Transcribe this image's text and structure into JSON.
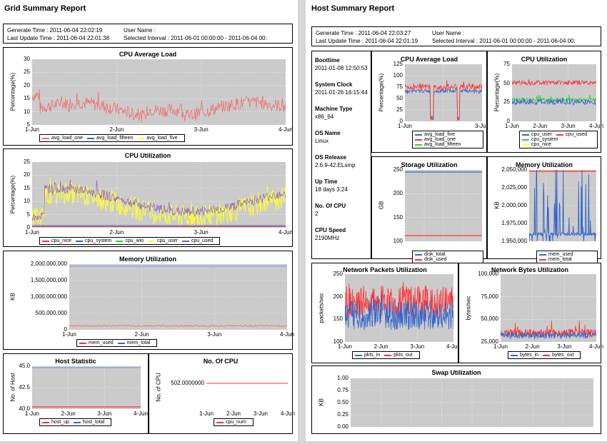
{
  "colors": {
    "red": "#ff3333",
    "pink": "#f07070",
    "blue": "#3366cc",
    "yellow": "#ffff33",
    "green": "#33cc33",
    "purple": "#8855bb",
    "lightblue": "#8899ee",
    "plotbg": "#cbcbcb"
  },
  "grid": {
    "title": "Grid Summary Report",
    "generate_time": "Generate Time : 2011-06-04 22:02:19",
    "last_update": "Last Update Time : 2011-06-04 22:01:38",
    "user_name": "User Name :",
    "interval": "Selected Interval : 2011-06-01 00:00:00 - 2011-06-04 00:"
  },
  "host": {
    "title": "Host Summary Report",
    "generate_time": "Generate Time : 2011-06-04 22:03:27",
    "last_update": "Last Update Time : 2011-06-04 22:01:19",
    "user_name": "User Name :",
    "interval": "Selected Interval : 2011-06-01 00:00:00 - 2011-06-04 00:",
    "props": [
      {
        "label": "Boottime",
        "value": "2011-01-08 12:50:53"
      },
      {
        "label": "System Clock",
        "value": "2011-01-26 16:15:44"
      },
      {
        "label": "Machine Type",
        "value": "x86_64"
      },
      {
        "label": "OS Name",
        "value": "Linux"
      },
      {
        "label": "OS Release",
        "value": "2.6.9-42.ELsmp"
      },
      {
        "label": "Up Time",
        "value": "18 days 3:24"
      },
      {
        "label": "No. Of CPU",
        "value": "2"
      },
      {
        "label": "CPU Speed",
        "value": "2190MHz"
      }
    ]
  },
  "charts": {
    "g_load": {
      "title": "CPU Average Load",
      "ylabel": "Percentage(%)",
      "yticks": [
        "30",
        "25",
        "20",
        "15",
        "10",
        "5"
      ],
      "xticks": [
        "1-Jun",
        "2-Jun",
        "3-Jun",
        "4-Jun"
      ],
      "legend": [
        {
          "name": "avg_load_one",
          "color": "#f07070"
        },
        {
          "name": "avg_load_fifteen",
          "color": "#3366cc"
        },
        {
          "name": "avg_load_five",
          "color": "#ffff33"
        }
      ]
    },
    "g_cpu": {
      "title": "CPU Utilization",
      "ylabel": "Percentage(%)",
      "yticks": [
        "25",
        "20",
        "15",
        "10",
        "5",
        "0"
      ],
      "xticks": [
        "1-Jun",
        "2-Jun",
        "3-Jun",
        "4-Jun"
      ],
      "legend": [
        {
          "name": "cpu_nice",
          "color": "#ff3333"
        },
        {
          "name": "cpu_system",
          "color": "#3366cc"
        },
        {
          "name": "cpu_wio",
          "color": "#33cc33"
        },
        {
          "name": "cpu_user",
          "color": "#ffff33"
        },
        {
          "name": "cpu_used",
          "color": "#8855bb"
        }
      ]
    },
    "g_mem": {
      "title": "Memory Utilization",
      "ylabel": "KB",
      "yticks": [
        "2,000,000,000",
        "1,500,000,000",
        "1,000,000,000",
        "500,000,000",
        "0"
      ],
      "xticks": [
        "1-Jun",
        "2-Jun",
        "3-Jun",
        "4-Jun"
      ],
      "legend": [
        {
          "name": "mem_used",
          "color": "#ff3333"
        },
        {
          "name": "mem_total",
          "color": "#3366cc"
        }
      ]
    },
    "g_host": {
      "title": "Host Statistic",
      "ylabel": "No. of Host",
      "yticks": [
        "45.0",
        "42.5",
        "40.0"
      ],
      "xticks": [
        "1-Jun",
        "2-Jun",
        "3-Jun",
        "4-Jun"
      ],
      "legend": [
        {
          "name": "host_up",
          "color": "#ff3333"
        },
        {
          "name": "host_total",
          "color": "#3366cc"
        }
      ]
    },
    "g_ncpu": {
      "title": "No. Of CPU",
      "ylabel": "No. of CPU",
      "yticks": [
        "502.0000000"
      ],
      "xticks": [
        "1-Jun",
        "2-Jun",
        "3-Jun",
        "4-Jun"
      ],
      "legend": [
        {
          "name": "cpu_num",
          "color": "#ff3333"
        }
      ]
    },
    "h_load": {
      "title": "CPU Average Load",
      "ylabel": "Percentage(%)",
      "yticks": [
        "125",
        "100",
        "75",
        "50",
        "25",
        "0"
      ],
      "xticks": [
        "1-Jun",
        "3-Jun"
      ],
      "legend": [
        {
          "name": "avg_load_five",
          "color": "#3366cc"
        },
        {
          "name": "avg_load_one",
          "color": "#ff3333"
        },
        {
          "name": "avg_load_fifteen",
          "color": "#33cc33"
        }
      ]
    },
    "h_cpu": {
      "title": "CPU Utilization",
      "ylabel": "Percentage(%)",
      "yticks": [
        "75",
        "50",
        "25",
        "0"
      ],
      "xticks": [
        "1-Jun",
        "2-Jun",
        "3-Jun",
        "4-Jun"
      ],
      "legend": [
        {
          "name": "cpu_user",
          "color": "#3366cc"
        },
        {
          "name": "cpu_used",
          "color": "#ff3333"
        },
        {
          "name": "cpu_system",
          "color": "#33cc33"
        },
        {
          "name": "cpu_nice",
          "color": "#ffff33"
        }
      ]
    },
    "h_storage": {
      "title": "Storage Utilization",
      "ylabel": "GB",
      "yticks": [
        "250",
        "200",
        "150",
        "100"
      ],
      "xticks": [],
      "legend": [
        {
          "name": "disk_total",
          "color": "#3366cc"
        },
        {
          "name": "disk_used",
          "color": "#ff3333"
        }
      ]
    },
    "h_mem": {
      "title": "Memory Utilization",
      "ylabel": "KB",
      "yticks": [
        "2,050,000",
        "2,025,000",
        "2,000,000",
        "1,975,000",
        "1,950,000"
      ],
      "xticks": [],
      "legend": [
        {
          "name": "mem_used",
          "color": "#3366cc"
        },
        {
          "name": "mem_total",
          "color": "#ff3333"
        }
      ]
    },
    "h_pkts": {
      "title": "Network Packets Utilization",
      "ylabel": "packets/sec",
      "yticks": [
        "250",
        "200",
        "150",
        "100"
      ],
      "xticks": [
        "1-Jun",
        "2-Jun",
        "3-Jun",
        "4-Jun"
      ],
      "legend": [
        {
          "name": "pkts_in",
          "color": "#3366cc"
        },
        {
          "name": "pkts_out",
          "color": "#ff3333"
        }
      ]
    },
    "h_bytes": {
      "title": "Network Bytes Utilization",
      "ylabel": "bytes/sec",
      "yticks": [
        "100,000",
        "75,000",
        "50,000",
        "25,000"
      ],
      "xticks": [
        "1-Jun",
        "2-Jun",
        "3-Jun",
        "4-Jun"
      ],
      "legend": [
        {
          "name": "bytes_in",
          "color": "#3366cc"
        },
        {
          "name": "bytes_out",
          "color": "#ff3333"
        }
      ]
    },
    "h_swap": {
      "title": "Swap Utilization",
      "ylabel": "KB",
      "yticks": [
        "1.00",
        "0.75",
        "0.50",
        "0.25",
        "0.00"
      ],
      "xticks": [],
      "legend": []
    }
  }
}
